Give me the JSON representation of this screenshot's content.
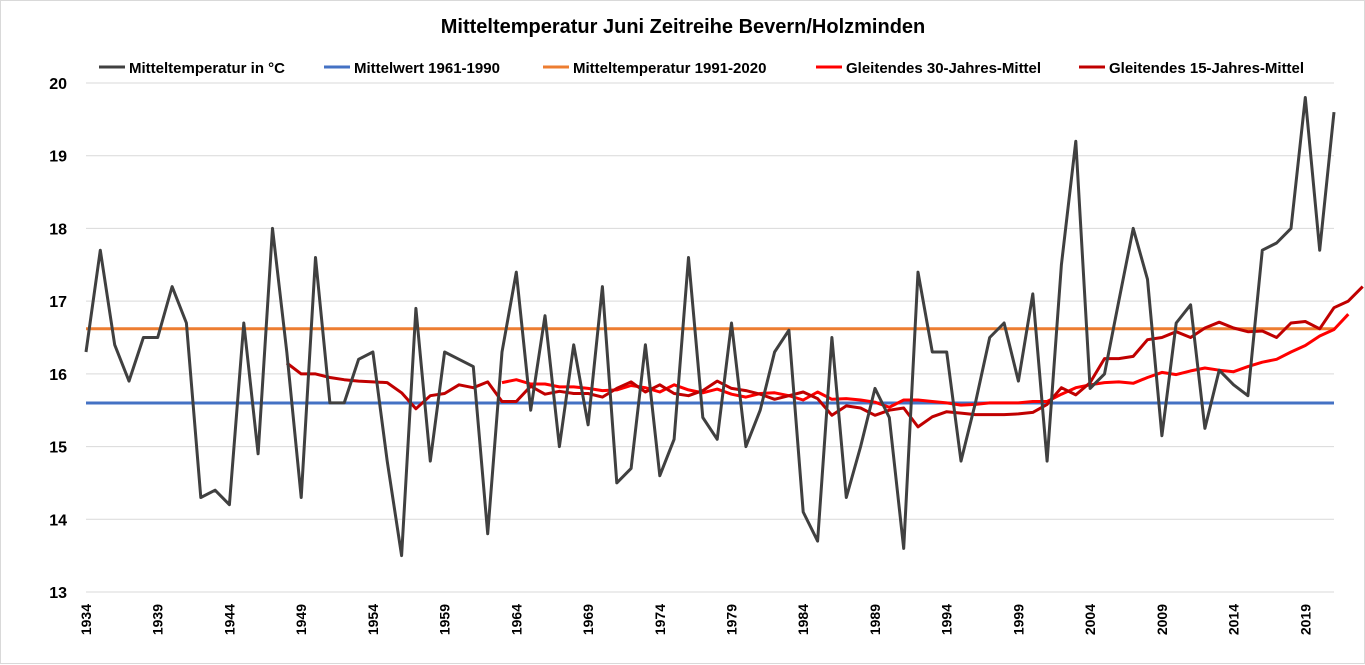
{
  "chart_data": {
    "type": "line",
    "title": "Mitteltemperatur Juni Zeitreihe Bevern/Holzminden",
    "xlabel": "",
    "ylabel": "",
    "ylim": [
      13,
      20
    ],
    "yticks": [
      13,
      14,
      15,
      16,
      17,
      18,
      19,
      20
    ],
    "xlim": [
      1934,
      2021
    ],
    "xticks": [
      1934,
      1939,
      1944,
      1949,
      1954,
      1959,
      1964,
      1969,
      1974,
      1979,
      1984,
      1989,
      1994,
      1999,
      2004,
      2009,
      2014,
      2019
    ],
    "grid": "horizontal",
    "legend_position": "top",
    "years": [
      1934,
      1935,
      1936,
      1937,
      1938,
      1939,
      1940,
      1941,
      1942,
      1943,
      1944,
      1945,
      1946,
      1947,
      1948,
      1949,
      1950,
      1951,
      1952,
      1953,
      1954,
      1955,
      1956,
      1957,
      1958,
      1959,
      1960,
      1961,
      1962,
      1963,
      1964,
      1965,
      1966,
      1967,
      1968,
      1969,
      1970,
      1971,
      1972,
      1973,
      1974,
      1975,
      1976,
      1977,
      1978,
      1979,
      1980,
      1981,
      1982,
      1983,
      1984,
      1985,
      1986,
      1987,
      1988,
      1989,
      1990,
      1991,
      1992,
      1993,
      1994,
      1995,
      1996,
      1997,
      1998,
      1999,
      2000,
      2001,
      2002,
      2003,
      2004,
      2005,
      2006,
      2007,
      2008,
      2009,
      2010,
      2011,
      2012,
      2013,
      2014,
      2015,
      2016,
      2017,
      2018,
      2019,
      2020,
      2021
    ],
    "series": [
      {
        "name": "Mitteltemperatur in °C",
        "color": "#404040",
        "start": 1934,
        "values": [
          16.3,
          17.7,
          16.4,
          15.9,
          16.5,
          16.5,
          17.2,
          16.7,
          14.3,
          14.4,
          14.2,
          16.7,
          14.9,
          18.0,
          16.3,
          14.3,
          17.6,
          15.6,
          15.6,
          16.2,
          16.3,
          14.8,
          13.5,
          16.9,
          14.8,
          16.3,
          16.2,
          16.1,
          13.8,
          16.3,
          17.4,
          15.5,
          16.8,
          15.0,
          16.4,
          15.3,
          17.2,
          14.5,
          14.7,
          16.4,
          14.6,
          15.1,
          17.6,
          15.4,
          15.1,
          16.7,
          15.0,
          15.5,
          16.3,
          16.6,
          14.1,
          13.7,
          16.5,
          14.3,
          15.0,
          15.8,
          15.4,
          13.6,
          17.4,
          16.3,
          16.3,
          14.8,
          15.6,
          16.5,
          16.7,
          15.9,
          17.1,
          14.8,
          17.5,
          19.2,
          15.8,
          16.0,
          17.0,
          18.0,
          17.3,
          15.15,
          16.7,
          16.95,
          15.25,
          16.05,
          15.85,
          15.7,
          17.7,
          17.8,
          18.0,
          19.8,
          17.7,
          19.6
        ]
      },
      {
        "name": "Mittelwert 1961-1990",
        "color": "#4472c4",
        "constant": 15.6
      },
      {
        "name": "Mitteltemperatur 1991-2020",
        "color": "#ed7d31",
        "constant": 16.62
      },
      {
        "name": "Gleitendes 30-Jahres-Mittel",
        "color": "#ff0000",
        "start": 1963,
        "values": [
          15.88,
          15.92,
          15.86,
          15.86,
          15.82,
          15.82,
          15.8,
          15.77,
          15.78,
          15.84,
          15.81,
          15.75,
          15.85,
          15.78,
          15.74,
          15.79,
          15.72,
          15.68,
          15.73,
          15.74,
          15.7,
          15.64,
          15.75,
          15.65,
          15.66,
          15.64,
          15.61,
          15.54,
          15.64,
          15.64,
          15.62,
          15.6,
          15.57,
          15.58,
          15.6,
          15.6,
          15.6,
          15.62,
          15.62,
          15.72,
          15.81,
          15.85,
          15.88,
          15.89,
          15.87,
          15.95,
          16.02,
          15.99,
          16.04,
          16.08,
          16.05,
          16.03,
          16.1,
          16.16,
          16.2,
          16.3,
          16.39,
          16.52,
          16.61,
          16.82
        ]
      },
      {
        "name": "Gleitendes 15-Jahres-Mittel",
        "color": "#c00000",
        "start": 1948,
        "values": [
          16.15,
          16.0,
          16.0,
          15.95,
          15.92,
          15.9,
          15.89,
          15.88,
          15.74,
          15.52,
          15.7,
          15.73,
          15.85,
          15.81,
          15.89,
          15.62,
          15.62,
          15.83,
          15.72,
          15.76,
          15.73,
          15.73,
          15.68,
          15.8,
          15.89,
          15.75,
          15.85,
          15.73,
          15.7,
          15.77,
          15.9,
          15.8,
          15.77,
          15.72,
          15.65,
          15.7,
          15.75,
          15.66,
          15.43,
          15.56,
          15.53,
          15.43,
          15.5,
          15.53,
          15.27,
          15.41,
          15.48,
          15.46,
          15.44,
          15.44,
          15.44,
          15.45,
          15.47,
          15.58,
          15.81,
          15.71,
          15.88,
          16.21,
          16.21,
          16.24,
          16.47,
          16.5,
          16.58,
          16.5,
          16.63,
          16.71,
          16.63,
          16.58,
          16.59,
          16.5,
          16.7,
          16.72,
          16.62,
          16.91,
          17.0,
          17.2
        ]
      }
    ]
  }
}
